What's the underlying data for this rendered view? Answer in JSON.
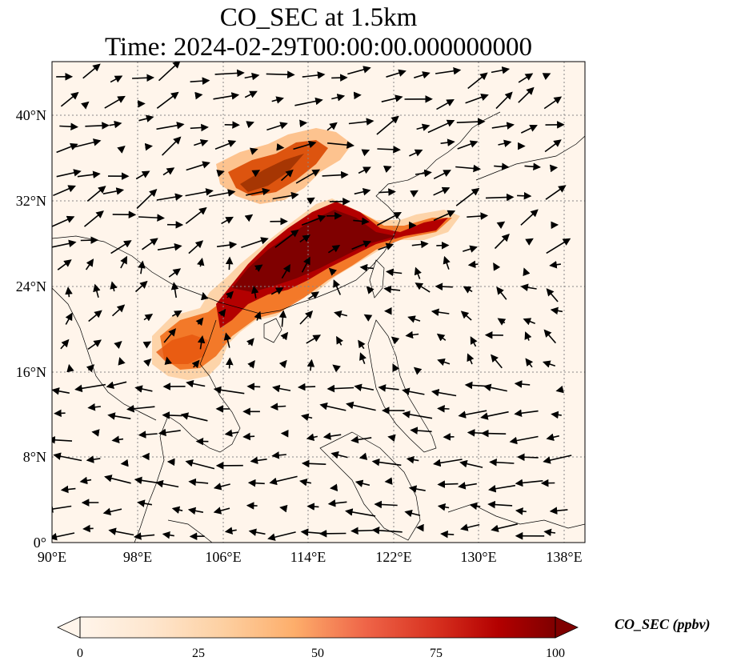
{
  "title_line1": "CO_SEC at 1.5km",
  "title_line2": "Time: 2024-02-29T00:00:00.000000000",
  "map": {
    "lon_range": [
      90,
      140
    ],
    "lat_range": [
      0,
      45
    ],
    "lon_ticks": [
      "90°E",
      "98°E",
      "106°E",
      "114°E",
      "122°E",
      "130°E",
      "138°E"
    ],
    "lat_ticks": [
      "0°",
      "8°N",
      "16°N",
      "24°N",
      "32°N",
      "40°N"
    ],
    "gridlines": true,
    "background_color": "#fff5eb"
  },
  "colorbar": {
    "label": "CO_SEC (ppbv)",
    "ticks": [
      "0",
      "25",
      "50",
      "75",
      "100"
    ],
    "range": [
      0,
      100
    ],
    "colormap": "OrRd",
    "colors": [
      "#fff5eb",
      "#fee6ce",
      "#fdd0a2",
      "#fdae6b",
      "#fd8d3c",
      "#f16913",
      "#d94801",
      "#a63603",
      "#7f0000"
    ]
  }
}
